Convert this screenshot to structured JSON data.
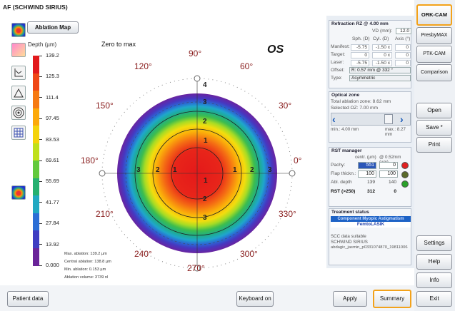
{
  "window": {
    "title": "AF (SCHWIND SIRIUS)"
  },
  "map": {
    "tab_label": "Ablation Map",
    "unit_label": "Depth (µm)",
    "mode_label": "Zero to max",
    "eye_label": "OS",
    "angles": [
      "90°",
      "60°",
      "30°",
      "0°",
      "330°",
      "300°",
      "270°",
      "240°",
      "210°",
      "180°",
      "150°",
      "120°"
    ],
    "ring_numbers": [
      "4",
      "3",
      "2",
      "1",
      "1",
      "2",
      "3",
      "3",
      "2",
      "1",
      "1",
      "2",
      "3"
    ]
  },
  "scale": {
    "ticks": [
      "139.2",
      "125.3",
      "111.4",
      "97.45",
      "83.53",
      "69.61",
      "55.69",
      "41.77",
      "27.84",
      "13.92",
      "0.000"
    ],
    "colors": [
      "#e21a1c",
      "#ef4716",
      "#f67a12",
      "#fca90a",
      "#f4d30b",
      "#bfe01b",
      "#62c93c",
      "#25b070",
      "#21a9c2",
      "#2c6fd6",
      "#3e3dc2",
      "#6a2499"
    ]
  },
  "footer_info": {
    "max": "Max. ablation: 139.2 µm",
    "central": "Central ablation: 138.8 µm",
    "min": "Min. ablation: 0.153 µm",
    "volume": "Ablation volume: 3739 nl"
  },
  "refraction": {
    "title": "Refraction RZ @ 4.00 mm",
    "vd_label": "VD (mm):",
    "vd_value": "12.0",
    "col_sph": "Sph. (D)",
    "col_cyl": "Cyl. (D)",
    "col_axis": "Axis (°)",
    "rows": [
      {
        "label": "Manifest:",
        "sph": "-5.75",
        "cyl": "-1.50 x",
        "axis": "0"
      },
      {
        "label": "Target:",
        "sph": "0",
        "cyl": "0 x",
        "axis": "0"
      },
      {
        "label": "Laser:",
        "sph": "-5.75",
        "cyl": "-1.50 x",
        "axis": "0"
      }
    ],
    "offset_label": "Offset:",
    "offset_value": "R: 0.57 mm @ 332 °",
    "type_label": "Type:",
    "type_value": "Asymmetric"
  },
  "optical_zone": {
    "title": "Optical zone",
    "total": "Total ablation zone: 8.62 mm",
    "selected": "Selected OZ: 7.00 mm",
    "min_label": "min.: 4.00 mm",
    "max_label": "max.: 8.27 mm"
  },
  "rst": {
    "title": "RST manager",
    "col_centr": "centr. (µm)",
    "col_052": "@ 0.52mm (µm)",
    "pachy_label": "Pachy:",
    "pachy_centr": "551",
    "pachy_052": "0",
    "flap_label": "Flap thickn.:",
    "flap_centr": "100",
    "flap_052": "100",
    "abl_label": "Abl. depth",
    "abl_centr": "139",
    "abl_052": "140",
    "rst_label": "RST (>250)",
    "rst_centr": "312",
    "rst_052": "0"
  },
  "treatment": {
    "title": "Treatment status",
    "item1": "Component Myopic Astigmatism",
    "item2": "FemtoLASIK",
    "note1": "SCC data suitable",
    "note2": "SCHWIND SIRIUS",
    "note3": "abdagic_jasmin_p0331074870_19811006"
  },
  "sidebar": {
    "ork_cam": "ORK-CAM",
    "presbymax": "PresbyMAX",
    "ptk_cam": "PTK-CAM",
    "comparison": "Comparison",
    "open": "Open",
    "save": "Save *",
    "print": "Print",
    "settings": "Settings",
    "help": "Help",
    "info": "Info",
    "exit": "Exit"
  },
  "bottom": {
    "patient_data": "Patient data",
    "keyboard_on": "Keyboard on",
    "apply": "Apply",
    "summary": "Summary"
  }
}
